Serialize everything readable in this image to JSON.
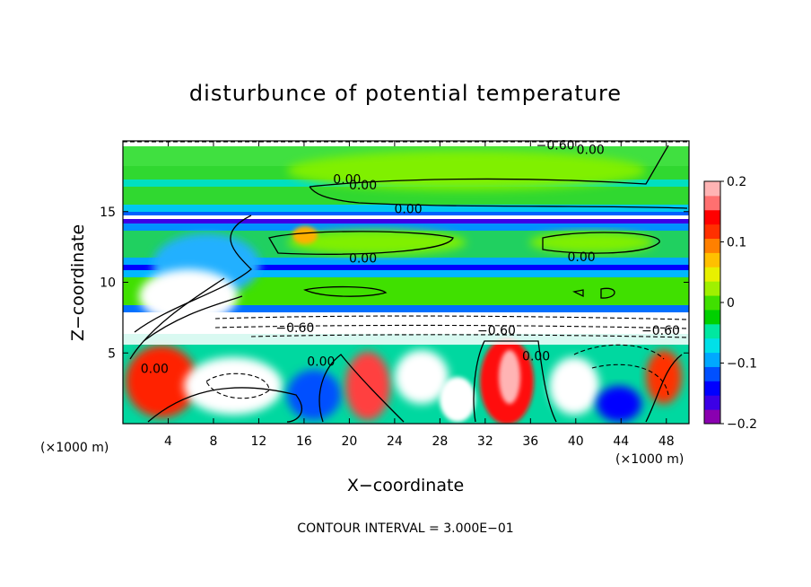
{
  "chart_data": {
    "type": "heatmap",
    "title": "disturbunce of potential temperature",
    "xlabel": "X−coordinate",
    "ylabel": "Z−coordinate",
    "x_unit": "(×1000 m)",
    "z_unit": "(×1000 m)",
    "xlim": [
      0,
      50
    ],
    "ylim": [
      0,
      20
    ],
    "x_ticks": [
      4,
      8,
      12,
      16,
      20,
      24,
      28,
      32,
      36,
      40,
      44,
      48
    ],
    "y_ticks": [
      5,
      10,
      15
    ],
    "colorbar": {
      "range": [
        -0.2,
        0.2
      ],
      "ticks": [
        {
          "value": 0.2,
          "label": "0.2"
        },
        {
          "value": 0.1,
          "label": "0.1"
        },
        {
          "value": 0.0,
          "label": "0"
        },
        {
          "value": -0.1,
          "label": "−0.1"
        },
        {
          "value": -0.2,
          "label": "−0.2"
        }
      ],
      "colors": [
        "#8a00b0",
        "#3c00e6",
        "#0000ff",
        "#0050ff",
        "#00a8ff",
        "#00e0e8",
        "#00e8a0",
        "#00d000",
        "#40e000",
        "#a0f000",
        "#e8f000",
        "#ffc000",
        "#ff8000",
        "#ff3000",
        "#ff0000",
        "#ff7070",
        "#ffb4b4"
      ]
    },
    "contour_labels": [
      {
        "x": 38.2,
        "z": 19.7,
        "text": "−0.60"
      },
      {
        "x": 41.3,
        "z": 19.4,
        "text": "0.00"
      },
      {
        "x": 19.8,
        "z": 17.3,
        "text": "0.00"
      },
      {
        "x": 21.2,
        "z": 16.9,
        "text": "0.00"
      },
      {
        "x": 25.2,
        "z": 15.2,
        "text": "0.00"
      },
      {
        "x": 21.2,
        "z": 11.7,
        "text": "0.00"
      },
      {
        "x": 40.5,
        "z": 11.8,
        "text": "0.00"
      },
      {
        "x": 15.2,
        "z": 6.8,
        "text": "−0.60"
      },
      {
        "x": 33.0,
        "z": 6.6,
        "text": "−0.60"
      },
      {
        "x": 47.5,
        "z": 6.6,
        "text": "−0.60"
      },
      {
        "x": 36.5,
        "z": 4.8,
        "text": "0.00"
      },
      {
        "x": 17.5,
        "z": 4.4,
        "text": "0.00"
      },
      {
        "x": 2.8,
        "z": 3.9,
        "text": "0.00"
      }
    ],
    "contour_interval": "CONTOUR INTERVAL = 3.000E−01"
  }
}
